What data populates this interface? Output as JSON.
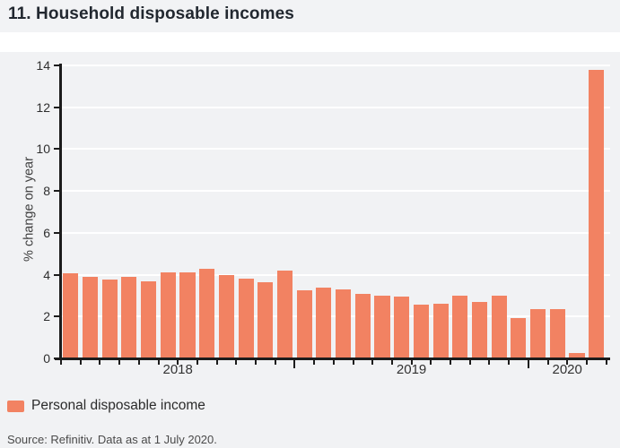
{
  "header": {
    "title": "11. Household disposable incomes"
  },
  "chart_data": {
    "type": "bar",
    "title": "11. Household disposable incomes",
    "xlabel": "",
    "ylabel": "% change on year",
    "ylim": [
      0,
      14
    ],
    "yticks": [
      0,
      2,
      4,
      6,
      8,
      10,
      12,
      14
    ],
    "grid": "horizontal white gridlines on light gray panel",
    "legend_position": "bottom-left",
    "series_name": "Personal disposable income",
    "bar_color": "#f28262",
    "x_years": [
      {
        "label": "2018",
        "months": 12
      },
      {
        "label": "2019",
        "months": 12
      },
      {
        "label": "2020",
        "months": 4
      }
    ],
    "categories": [
      "Jan 2018",
      "Feb 2018",
      "Mar 2018",
      "Apr 2018",
      "May 2018",
      "Jun 2018",
      "Jul 2018",
      "Aug 2018",
      "Sep 2018",
      "Oct 2018",
      "Nov 2018",
      "Dec 2018",
      "Jan 2019",
      "Feb 2019",
      "Mar 2019",
      "Apr 2019",
      "May 2019",
      "Jun 2019",
      "Jul 2019",
      "Aug 2019",
      "Sep 2019",
      "Oct 2019",
      "Nov 2019",
      "Dec 2019",
      "Jan 2020",
      "Feb 2020",
      "Mar 2020",
      "Apr 2020"
    ],
    "values": [
      4.05,
      3.9,
      3.75,
      3.9,
      3.7,
      4.1,
      4.1,
      4.3,
      4.0,
      3.8,
      3.65,
      4.2,
      3.25,
      3.4,
      3.3,
      3.1,
      3.0,
      2.95,
      2.55,
      2.6,
      3.0,
      2.7,
      3.0,
      1.95,
      2.35,
      2.35,
      0.25,
      13.8
    ]
  },
  "legend": {
    "label": "Personal disposable income",
    "swatch_color": "#f28262"
  },
  "footer": {
    "source": "Source: Refinitiv. Data as at 1 July 2020."
  },
  "colors": {
    "panel_bg": "#f1f2f4",
    "separator": "#ffffff",
    "axis": "#1c1c1c",
    "grid": "#ffffff",
    "bar": "#f28262",
    "title_text": "#222830",
    "tick_text": "#2e2e2e",
    "muted_text": "#4a4a4a"
  }
}
